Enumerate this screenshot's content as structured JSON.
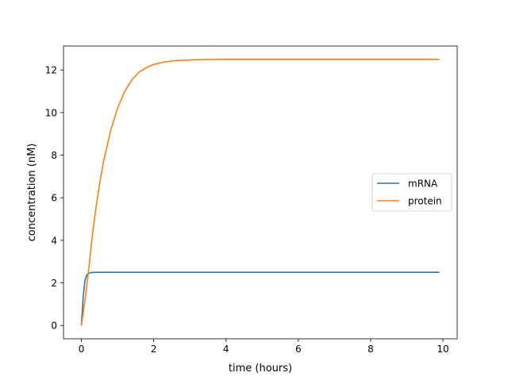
{
  "chart_data": {
    "type": "line",
    "title": "",
    "xlabel": "time (hours)",
    "ylabel": "concentration (nM)",
    "xlim": [
      -0.495,
      10.395
    ],
    "ylim": [
      -0.625,
      13.125
    ],
    "x_ticks": [
      0,
      2,
      4,
      6,
      8,
      10
    ],
    "y_ticks": [
      0,
      2,
      4,
      6,
      8,
      10,
      12
    ],
    "grid": false,
    "legend_position": "center-right",
    "series": [
      {
        "name": "mRNA",
        "color": "#1f77b4",
        "x": [
          0,
          0.05,
          0.1,
          0.15,
          0.2,
          0.3,
          0.4,
          0.5,
          0.75,
          1,
          2,
          4,
          6,
          8,
          9.9
        ],
        "y": [
          0,
          1.37,
          2.12,
          2.38,
          2.45,
          2.49,
          2.5,
          2.5,
          2.5,
          2.5,
          2.5,
          2.5,
          2.5,
          2.5,
          2.5
        ]
      },
      {
        "name": "protein",
        "color": "#ff7f0e",
        "x": [
          0,
          0.1,
          0.2,
          0.3,
          0.4,
          0.5,
          0.6,
          0.8,
          1.0,
          1.2,
          1.4,
          1.6,
          1.8,
          2.0,
          2.3,
          2.6,
          3.0,
          3.5,
          4.0,
          5.0,
          6.0,
          8.0,
          9.9
        ],
        "y": [
          0,
          1.2,
          2.6,
          4.2,
          5.5,
          6.6,
          7.6,
          9.1,
          10.2,
          11.0,
          11.55,
          11.9,
          12.12,
          12.26,
          12.38,
          12.44,
          12.47,
          12.49,
          12.5,
          12.5,
          12.5,
          12.5,
          12.5
        ]
      }
    ]
  }
}
